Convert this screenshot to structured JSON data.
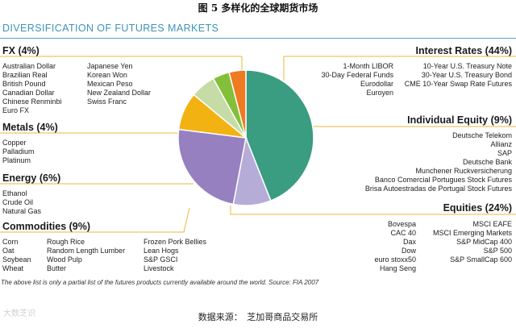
{
  "caption": "图 5 多样化的全球期货市场",
  "source_text": "数据来源：　芝加哥商品交易所",
  "watermark_text": "大数芝识",
  "chart_data": {
    "type": "pie",
    "title": "DIVERSIFICATION OF FUTURES MARKETS",
    "footnote": "The above list is only a partial list of the futures products currently available around the world. Source: FIA 2007",
    "slices": [
      {
        "name": "Interest Rates",
        "label": "Interest Rates (44%)",
        "value": 44,
        "color": "#3a9c80",
        "items": [
          "1-Month LIBOR",
          "10-Year U.S. Treasury Note",
          "30-Day Federal Funds",
          "30-Year U.S. Treasury Bond",
          "Eurodollar",
          "CME 10-Year Swap Rate Futures",
          "Euroyen"
        ]
      },
      {
        "name": "Individual Equity",
        "label": "Individual Equity (9%)",
        "value": 9,
        "color": "#b5acd8",
        "items": [
          "Deutsche Telekom",
          "Allianz",
          "SAP",
          "Deutsche Bank",
          "Munchener Ruckversicherung",
          "Banco Comercial Portugues Stock Futures",
          "Brisa Autoestradas de Portugal Stock Futures"
        ]
      },
      {
        "name": "Equities",
        "label": "Equities (24%)",
        "value": 24,
        "color": "#9680c0",
        "items": [
          "Bovespa",
          "MSCI EAFE",
          "CAC 40",
          "MSCI Emerging Markets",
          "Dax",
          "S&P MidCap 400",
          "Dow",
          "S&P 500",
          "euro stoxx50",
          "S&P SmallCap 600",
          "Hang Seng"
        ]
      },
      {
        "name": "Commodities",
        "label": "Commodities (9%)",
        "value": 9,
        "color": "#f2b211",
        "items": [
          "Corn",
          "Rough Rice",
          "Frozen Pork Bellies",
          "Oat",
          "Random Length Lumber",
          "Lean Hogs",
          "Soybean",
          "Wood Pulp",
          "S&P GSCI",
          "Wheat",
          "Butter",
          "Livestock"
        ]
      },
      {
        "name": "Energy",
        "label": "Energy (6%)",
        "value": 6,
        "color": "#c6dca6",
        "items": [
          "Ethanol",
          "Crude Oil",
          "Natural Gas"
        ]
      },
      {
        "name": "Metals",
        "label": "Metals (4%)",
        "value": 4,
        "color": "#84bf3a",
        "items": [
          "Copper",
          "Palladium",
          "Platinum"
        ]
      },
      {
        "name": "FX",
        "label": "FX (4%)",
        "value": 4,
        "color": "#ef7a22",
        "items": [
          "Australian Dollar",
          "Japanese Yen",
          "Brazilian Real",
          "Korean Won",
          "British Pound",
          "Mexican Peso",
          "Canadian Dollar",
          "New Zealand Dollar",
          "Chinese Renminbi",
          "Swiss Franc",
          "Euro FX"
        ]
      }
    ]
  }
}
